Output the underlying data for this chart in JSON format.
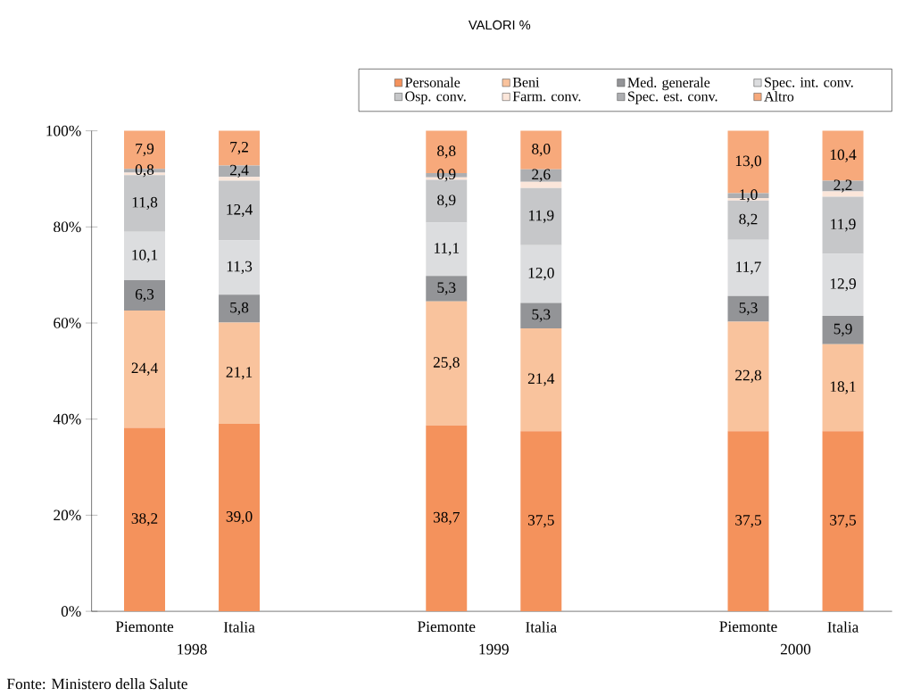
{
  "chart_data": {
    "type": "bar",
    "stacked": true,
    "subtitle": "VALORI %",
    "categories": [
      "Piemonte",
      "Italia",
      "Piemonte",
      "Italia",
      "Piemonte",
      "Italia"
    ],
    "series": [
      {
        "name": "Personale",
        "color": "#f4925c",
        "values": [
          38.2,
          39.0,
          38.7,
          37.5,
          37.5,
          37.5
        ],
        "value_labels": [
          "38,2",
          "39,0",
          "38,7",
          "37,5",
          "37,5",
          "37,5"
        ]
      },
      {
        "name": "Beni",
        "color": "#f9c39d",
        "values": [
          24.4,
          21.1,
          25.8,
          21.4,
          22.8,
          18.1
        ],
        "value_labels": [
          "24,4",
          "21,1",
          "25,8",
          "21,4",
          "22,8",
          "18,1"
        ]
      },
      {
        "name": "Med. generale",
        "color": "#939497",
        "values": [
          6.3,
          5.8,
          5.3,
          5.3,
          5.3,
          5.9
        ],
        "value_labels": [
          "6,3",
          "5,8",
          "5,3",
          "5,3",
          "5,3",
          "5,9"
        ]
      },
      {
        "name": "Spec. int. conv.",
        "color": "#dcdddf",
        "values": [
          10.1,
          11.3,
          11.1,
          12.0,
          11.7,
          12.9
        ],
        "value_labels": [
          "10,1",
          "11,3",
          "11,1",
          "12,0",
          "11,7",
          "12,9"
        ]
      },
      {
        "name": "Osp. conv.",
        "color": "#c6c7c9",
        "values": [
          11.8,
          12.4,
          8.9,
          11.9,
          8.2,
          11.9
        ],
        "value_labels": [
          "11,8",
          "12,4",
          "8,9",
          "11,9",
          "8,2",
          "11,9"
        ]
      },
      {
        "name": "Farm. conv.",
        "color": "#fbe6da",
        "values": [
          0.5,
          0.8,
          0.5,
          1.3,
          0.5,
          1.1
        ]
      },
      {
        "name": "Spec. est. conv.",
        "color": "#adaeb1",
        "values": [
          0.8,
          2.4,
          0.9,
          2.6,
          1.0,
          2.2
        ],
        "value_labels": [
          "0,8",
          "2,4",
          "0,9",
          "2,6",
          "1,0",
          "2,2"
        ]
      },
      {
        "name": "Altro",
        "color": "#f7a97b",
        "values": [
          7.9,
          7.2,
          8.8,
          8.0,
          13.0,
          10.4
        ],
        "value_labels": [
          "7,9",
          "7,2",
          "8,8",
          "8,0",
          "13,0",
          "10,4"
        ]
      }
    ],
    "ylim": [
      0,
      100
    ],
    "yticks": [
      {
        "value": 0,
        "label": "0%"
      },
      {
        "value": 20,
        "label": "20%"
      },
      {
        "value": 40,
        "label": "40%"
      },
      {
        "value": 60,
        "label": "60%"
      },
      {
        "value": 80,
        "label": "80%"
      },
      {
        "value": 100,
        "label": "100%"
      }
    ],
    "legend": "top right",
    "annotations": [
      "1998",
      "1999",
      "2000",
      "Fonte: Ministero della Salute"
    ]
  }
}
